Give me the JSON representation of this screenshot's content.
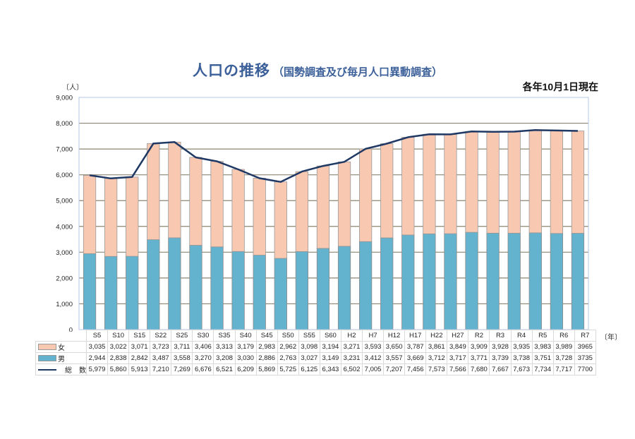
{
  "title": {
    "main": "人口の推移",
    "sub": "（国勢調査及び毎月人口異動調査）"
  },
  "as_of": "各年10月1日現在",
  "y_unit": "〔人〕",
  "x_unit": "〔年〕",
  "legend": {
    "female": "女",
    "male": "男",
    "total": "総　数"
  },
  "colors": {
    "female": "#f9c8b1",
    "male": "#63b3cf",
    "total_line": "#1f3864",
    "gridline": "#8c8570",
    "plot_border": "#b4c7e7"
  },
  "chart_data": {
    "type": "bar",
    "subtype": "stacked bar with line overlay",
    "title": "人口の推移（国勢調査及び毎月人口異動調査）",
    "subtitle": "各年10月1日現在",
    "xlabel": "〔年〕",
    "ylabel": "〔人〕",
    "ylim": [
      0,
      9000
    ],
    "yticks": [
      "0",
      "1,000",
      "2,000",
      "3,000",
      "4,000",
      "5,000",
      "6,000",
      "7,000",
      "8,000",
      "9,000"
    ],
    "grid": true,
    "legend_position": "data table (left of bottom table)",
    "categories": [
      "S5",
      "S10",
      "S15",
      "S22",
      "S25",
      "S30",
      "S35",
      "S40",
      "S45",
      "S50",
      "S55",
      "S60",
      "H2",
      "H7",
      "H12",
      "H17",
      "H22",
      "H27",
      "R2",
      "R3",
      "R4",
      "R5",
      "R6",
      "R7"
    ],
    "series": [
      {
        "name": "男",
        "type": "bar",
        "stack": "pop",
        "values": [
          2944,
          2838,
          2842,
          3487,
          3558,
          3270,
          3208,
          3030,
          2886,
          2763,
          3027,
          3149,
          3231,
          3412,
          3557,
          3669,
          3712,
          3717,
          3771,
          3739,
          3738,
          3751,
          3728,
          3735
        ],
        "labels": [
          "2,944",
          "2,838",
          "2,842",
          "3,487",
          "3,558",
          "3,270",
          "3,208",
          "3,030",
          "2,886",
          "2,763",
          "3,027",
          "3,149",
          "3,231",
          "3,412",
          "3,557",
          "3,669",
          "3,712",
          "3,717",
          "3,771",
          "3,739",
          "3,738",
          "3,751",
          "3,728",
          "3735"
        ]
      },
      {
        "name": "女",
        "type": "bar",
        "stack": "pop",
        "values": [
          3035,
          3022,
          3071,
          3723,
          3711,
          3406,
          3313,
          3179,
          2983,
          2962,
          3098,
          3194,
          3271,
          3593,
          3650,
          3787,
          3861,
          3849,
          3909,
          3928,
          3935,
          3983,
          3989,
          3965
        ],
        "labels": [
          "3,035",
          "3,022",
          "3,071",
          "3,723",
          "3,711",
          "3,406",
          "3,313",
          "3,179",
          "2,983",
          "2,962",
          "3,098",
          "3,194",
          "3,271",
          "3,593",
          "3,650",
          "3,787",
          "3,861",
          "3,849",
          "3,909",
          "3,928",
          "3,935",
          "3,983",
          "3,989",
          "3965"
        ]
      },
      {
        "name": "総数",
        "type": "line",
        "values": [
          5979,
          5860,
          5913,
          7210,
          7269,
          6676,
          6521,
          6209,
          5869,
          5725,
          6125,
          6343,
          6502,
          7005,
          7207,
          7456,
          7573,
          7566,
          7680,
          7667,
          7673,
          7734,
          7717,
          7700
        ],
        "labels": [
          "5,979",
          "5,860",
          "5,913",
          "7,210",
          "7,269",
          "6,676",
          "6,521",
          "6,209",
          "5,869",
          "5,725",
          "6,125",
          "6,343",
          "6,502",
          "7,005",
          "7,207",
          "7,456",
          "7,573",
          "7,566",
          "7,680",
          "7,667",
          "7,673",
          "7,734",
          "7,717",
          "7700"
        ]
      }
    ]
  }
}
